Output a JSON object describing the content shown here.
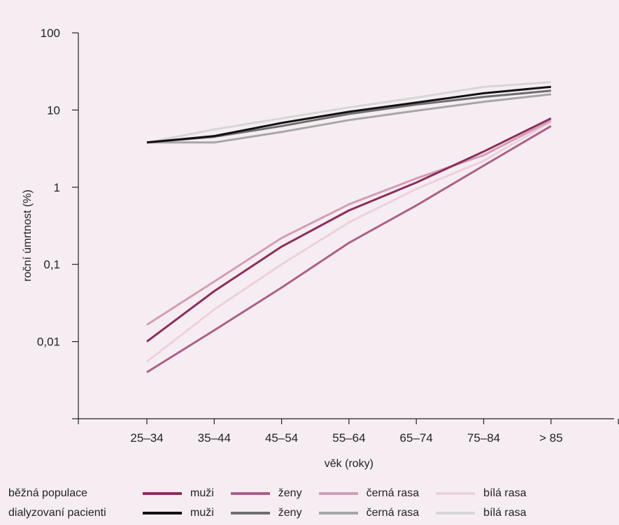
{
  "chart_data": {
    "type": "line",
    "y_scale": "log",
    "ylim": [
      0.001,
      100
    ],
    "xlabel": "věk (roky)",
    "ylabel": "roční úmrtnost (%)",
    "categories": [
      "25–34",
      "35–44",
      "45–54",
      "55–64",
      "65–74",
      "75–84",
      "> 85"
    ],
    "y_tick_labels": [
      "100",
      "10",
      "1",
      "0,1",
      "0,01"
    ],
    "y_ticks": [
      100,
      10,
      1,
      0.1,
      0.01
    ],
    "grid": false,
    "legend_position": "bottom",
    "legend_groups": [
      {
        "label": "běžná populace",
        "series_indices": [
          0,
          1,
          2,
          3
        ]
      },
      {
        "label": "dialyzovaní pacienti",
        "series_indices": [
          4,
          5,
          6,
          7
        ]
      }
    ],
    "series": [
      {
        "name": "muži",
        "group": "běžná populace",
        "color": "#8b2e5c",
        "values": [
          0.01,
          0.045,
          0.17,
          0.5,
          1.15,
          2.9,
          7.8
        ]
      },
      {
        "name": "ženy",
        "group": "běžná populace",
        "color": "#ad5f86",
        "values": [
          0.004,
          0.014,
          0.05,
          0.19,
          0.58,
          1.9,
          6.2
        ]
      },
      {
        "name": "černá rasa",
        "group": "běžná populace",
        "color": "#d49db6",
        "values": [
          0.0165,
          0.06,
          0.22,
          0.6,
          1.3,
          2.6,
          7.3
        ]
      },
      {
        "name": "bílá rasa",
        "group": "běžná populace",
        "color": "#ecd1dd",
        "values": [
          0.0055,
          0.026,
          0.1,
          0.35,
          0.95,
          2.2,
          7.0
        ]
      },
      {
        "name": "muži",
        "group": "dialyzovaní pacienti",
        "color": "#111111",
        "values": [
          3.8,
          4.6,
          6.8,
          9.5,
          12.5,
          16.5,
          20.0
        ]
      },
      {
        "name": "ženy",
        "group": "dialyzovaní pacienti",
        "color": "#6e6e6e",
        "values": [
          3.8,
          4.5,
          6.2,
          8.9,
          11.8,
          14.8,
          17.8
        ]
      },
      {
        "name": "černá rasa",
        "group": "dialyzovaní pacienti",
        "color": "#a6a6a6",
        "values": [
          3.8,
          3.8,
          5.2,
          7.4,
          9.8,
          12.8,
          16.0
        ]
      },
      {
        "name": "bílá rasa",
        "group": "dialyzovaní pacienti",
        "color": "#d6d6d6",
        "values": [
          3.8,
          5.6,
          7.8,
          10.8,
          14.5,
          20.0,
          23.0
        ]
      }
    ]
  }
}
